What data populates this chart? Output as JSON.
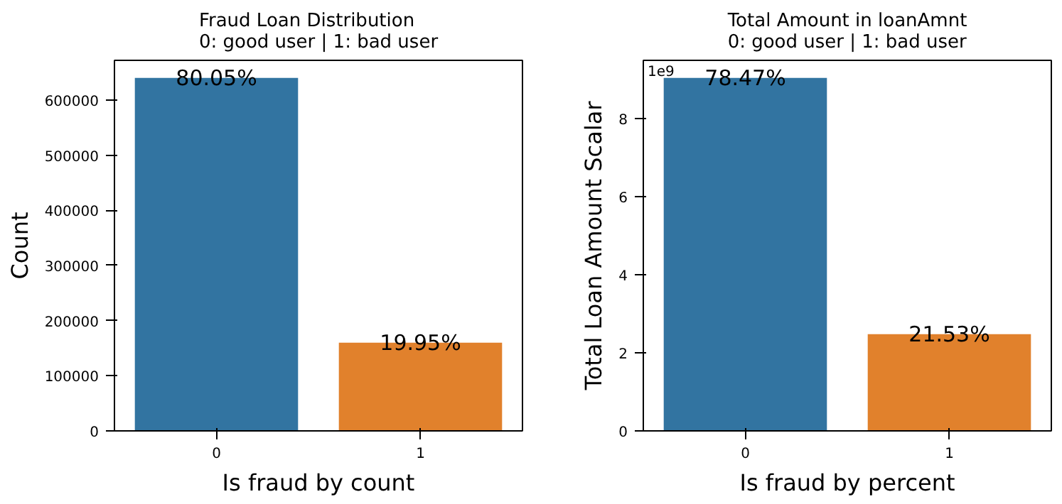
{
  "chart_data": [
    {
      "type": "bar",
      "title": "Fraud Loan Distribution\n0: good user | 1: bad user",
      "xlabel": "Is fraud by count",
      "ylabel": "Count",
      "categories": [
        "0",
        "1"
      ],
      "values": [
        640000,
        160000
      ],
      "colors": [
        "#3274a1",
        "#e1812c"
      ],
      "ylim": [
        0,
        672000
      ],
      "yticks": [
        0,
        100000,
        200000,
        300000,
        400000,
        500000,
        600000
      ],
      "annotations": [
        {
          "text": "80.05%",
          "x": "0",
          "y": 640000
        },
        {
          "text": "19.95%",
          "x": "1",
          "y": 160000
        }
      ]
    },
    {
      "type": "bar",
      "title": "Total Amount in loanAmnt\n0: good user | 1: bad user",
      "xlabel": "Is fraud by percent",
      "ylabel": "Total Loan Amount Scalar",
      "categories": [
        "0",
        "1"
      ],
      "values": [
        9.05,
        2.48
      ],
      "colors": [
        "#3274a1",
        "#e1812c"
      ],
      "ylim": [
        0,
        9.5
      ],
      "yticks": [
        0,
        2,
        4,
        6,
        8
      ],
      "annotations": [
        "1e9",
        {
          "text": "78.47%",
          "x": "0",
          "y": 9.05
        },
        {
          "text": "21.53%",
          "x": "1",
          "y": 2.48
        }
      ]
    }
  ]
}
